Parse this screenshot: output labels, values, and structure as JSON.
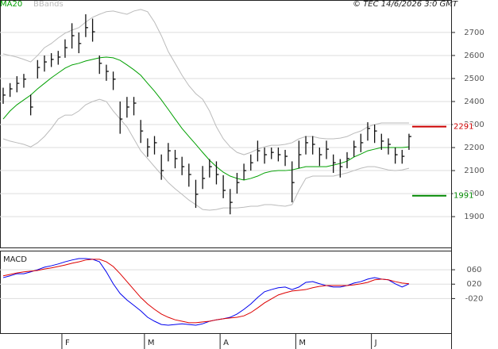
{
  "chart_data": [
    {
      "type": "ohlc",
      "timestamp": "© TEC 14/6/2026 3:0 GMT",
      "categories": [
        null,
        null,
        null,
        null,
        null,
        null,
        null,
        null,
        null,
        "F",
        null,
        null,
        null,
        null,
        null,
        null,
        null,
        null,
        null,
        null,
        null,
        "M",
        null,
        null,
        null,
        null,
        null,
        null,
        null,
        null,
        null,
        null,
        "A",
        null,
        null,
        null,
        null,
        null,
        null,
        null,
        null,
        null,
        null,
        "M",
        null,
        null,
        null,
        null,
        null,
        null,
        null,
        null,
        null,
        null,
        "J",
        null,
        null,
        null,
        null,
        null
      ],
      "high": [
        2460,
        2480,
        2510,
        2520,
        2430,
        2580,
        2600,
        2610,
        2620,
        2670,
        2740,
        2700,
        2779,
        2760,
        2600,
        2560,
        2530,
        2400,
        2420,
        2420,
        2320,
        2240,
        2250,
        2170,
        2220,
        2190,
        2160,
        2130,
        2060,
        2120,
        2150,
        2140,
        2080,
        2020,
        2090,
        2130,
        2170,
        2230,
        2200,
        2200,
        2200,
        2190,
        2140,
        2230,
        2250,
        2250,
        2200,
        2230,
        2170,
        2150,
        2180,
        2230,
        2260,
        2310,
        2300,
        2260,
        2240,
        2200,
        2190,
        2260
      ],
      "low": [
        2390,
        2420,
        2440,
        2460,
        2340,
        2500,
        2530,
        2550,
        2560,
        2590,
        2630,
        2610,
        2680,
        2660,
        2520,
        2490,
        2450,
        2260,
        2330,
        2340,
        2220,
        2160,
        2170,
        2060,
        2140,
        2110,
        2080,
        2030,
        1938,
        2020,
        2070,
        2040,
        1980,
        1910,
        2000,
        2060,
        2100,
        2140,
        2130,
        2150,
        2140,
        2120,
        1962,
        2110,
        2170,
        2170,
        2120,
        2150,
        2090,
        2070,
        2110,
        2160,
        2180,
        2230,
        2220,
        2190,
        2170,
        2130,
        2130,
        2190
      ],
      "close": [
        2428,
        2455,
        2479,
        2497,
        2376,
        2548,
        2572,
        2583,
        2593,
        2634,
        2686,
        2652,
        2721,
        2703,
        2566,
        2531,
        2497,
        2324,
        2376,
        2393,
        2272,
        2203,
        2221,
        2100,
        2186,
        2152,
        2117,
        2083,
        1997,
        2066,
        2117,
        2083,
        2014,
        1962,
        2048,
        2100,
        2134,
        2186,
        2169,
        2179,
        2169,
        2162,
        2048,
        2169,
        2221,
        2214,
        2169,
        2193,
        2134,
        2117,
        2152,
        2203,
        2221,
        2283,
        2272,
        2228,
        2214,
        2169,
        2162,
        2248
      ],
      "series": [
        {
          "name": "MA20",
          "color": "#00a000",
          "values": [
            2324,
            2359,
            2386,
            2407,
            2428,
            2455,
            2479,
            2503,
            2524,
            2545,
            2559,
            2566,
            2576,
            2583,
            2590,
            2593,
            2590,
            2579,
            2559,
            2538,
            2514,
            2479,
            2445,
            2407,
            2366,
            2324,
            2283,
            2248,
            2214,
            2179,
            2145,
            2117,
            2093,
            2076,
            2066,
            2059,
            2066,
            2076,
            2090,
            2097,
            2100,
            2100,
            2103,
            2110,
            2117,
            2117,
            2117,
            2117,
            2124,
            2131,
            2141,
            2159,
            2172,
            2186,
            2193,
            2200,
            2200,
            2200,
            2200,
            2203
          ]
        },
        {
          "name": "BBands",
          "color": "#bbbbbb",
          "upper": [
            2607,
            2600,
            2593,
            2583,
            2572,
            2600,
            2634,
            2652,
            2676,
            2697,
            2710,
            2721,
            2745,
            2766,
            2779,
            2790,
            2793,
            2786,
            2779,
            2793,
            2800,
            2790,
            2745,
            2686,
            2617,
            2566,
            2514,
            2469,
            2434,
            2410,
            2359,
            2290,
            2238,
            2203,
            2179,
            2169,
            2179,
            2193,
            2203,
            2210,
            2210,
            2214,
            2221,
            2238,
            2248,
            2248,
            2241,
            2238,
            2238,
            2241,
            2248,
            2262,
            2272,
            2290,
            2300,
            2307,
            2307,
            2307,
            2307,
            2307
          ],
          "lower": [
            2238,
            2228,
            2221,
            2214,
            2203,
            2221,
            2248,
            2283,
            2324,
            2341,
            2341,
            2359,
            2386,
            2400,
            2410,
            2400,
            2359,
            2324,
            2290,
            2238,
            2186,
            2152,
            2117,
            2083,
            2048,
            2021,
            1997,
            1972,
            1952,
            1931,
            1928,
            1931,
            1938,
            1938,
            1938,
            1941,
            1945,
            1945,
            1952,
            1952,
            1948,
            1945,
            1952,
            2014,
            2066,
            2076,
            2076,
            2076,
            2076,
            2083,
            2090,
            2100,
            2110,
            2117,
            2117,
            2110,
            2103,
            2100,
            2103,
            2110
          ]
        }
      ],
      "levels": [
        {
          "value": 2291,
          "color": "#cc0000"
        },
        {
          "value": 1991,
          "color": "#008800"
        }
      ],
      "ylim": [
        1766,
        2841
      ],
      "yticks": [
        1900,
        2000,
        2100,
        2200,
        2300,
        2400,
        2500,
        2600,
        2700
      ],
      "grid": true
    },
    {
      "type": "line",
      "title": "MACD",
      "series": [
        {
          "color": "#0000ee",
          "values": [
            38,
            43,
            49,
            49,
            54,
            60,
            67,
            71,
            76,
            82,
            87,
            91,
            91,
            89,
            82,
            54,
            21,
            -6,
            -24,
            -39,
            -54,
            -72,
            -83,
            -92,
            -94,
            -92,
            -90,
            -92,
            -94,
            -90,
            -83,
            -79,
            -76,
            -72,
            -63,
            -50,
            -35,
            -17,
            -1,
            5,
            10,
            12,
            5,
            12,
            25,
            27,
            21,
            16,
            12,
            12,
            16,
            23,
            27,
            34,
            38,
            34,
            32,
            21,
            12,
            21
          ]
        },
        {
          "color": "#dd0000",
          "values": [
            43,
            47,
            51,
            54,
            56,
            58,
            62,
            65,
            69,
            73,
            78,
            82,
            87,
            89,
            89,
            82,
            69,
            49,
            27,
            5,
            -17,
            -35,
            -50,
            -63,
            -72,
            -79,
            -83,
            -87,
            -87,
            -85,
            -83,
            -79,
            -76,
            -74,
            -72,
            -68,
            -59,
            -46,
            -32,
            -21,
            -10,
            -4,
            1,
            3,
            5,
            10,
            14,
            16,
            16,
            16,
            16,
            18,
            21,
            25,
            32,
            34,
            32,
            27,
            23,
            21
          ]
        }
      ],
      "ylim": [
        -116,
        113
      ],
      "yticks": [
        {
          "value": -20,
          "label": "-020"
        },
        {
          "value": 20,
          "label": "020"
        },
        {
          "value": 60,
          "label": "060"
        }
      ],
      "grid": true
    }
  ]
}
